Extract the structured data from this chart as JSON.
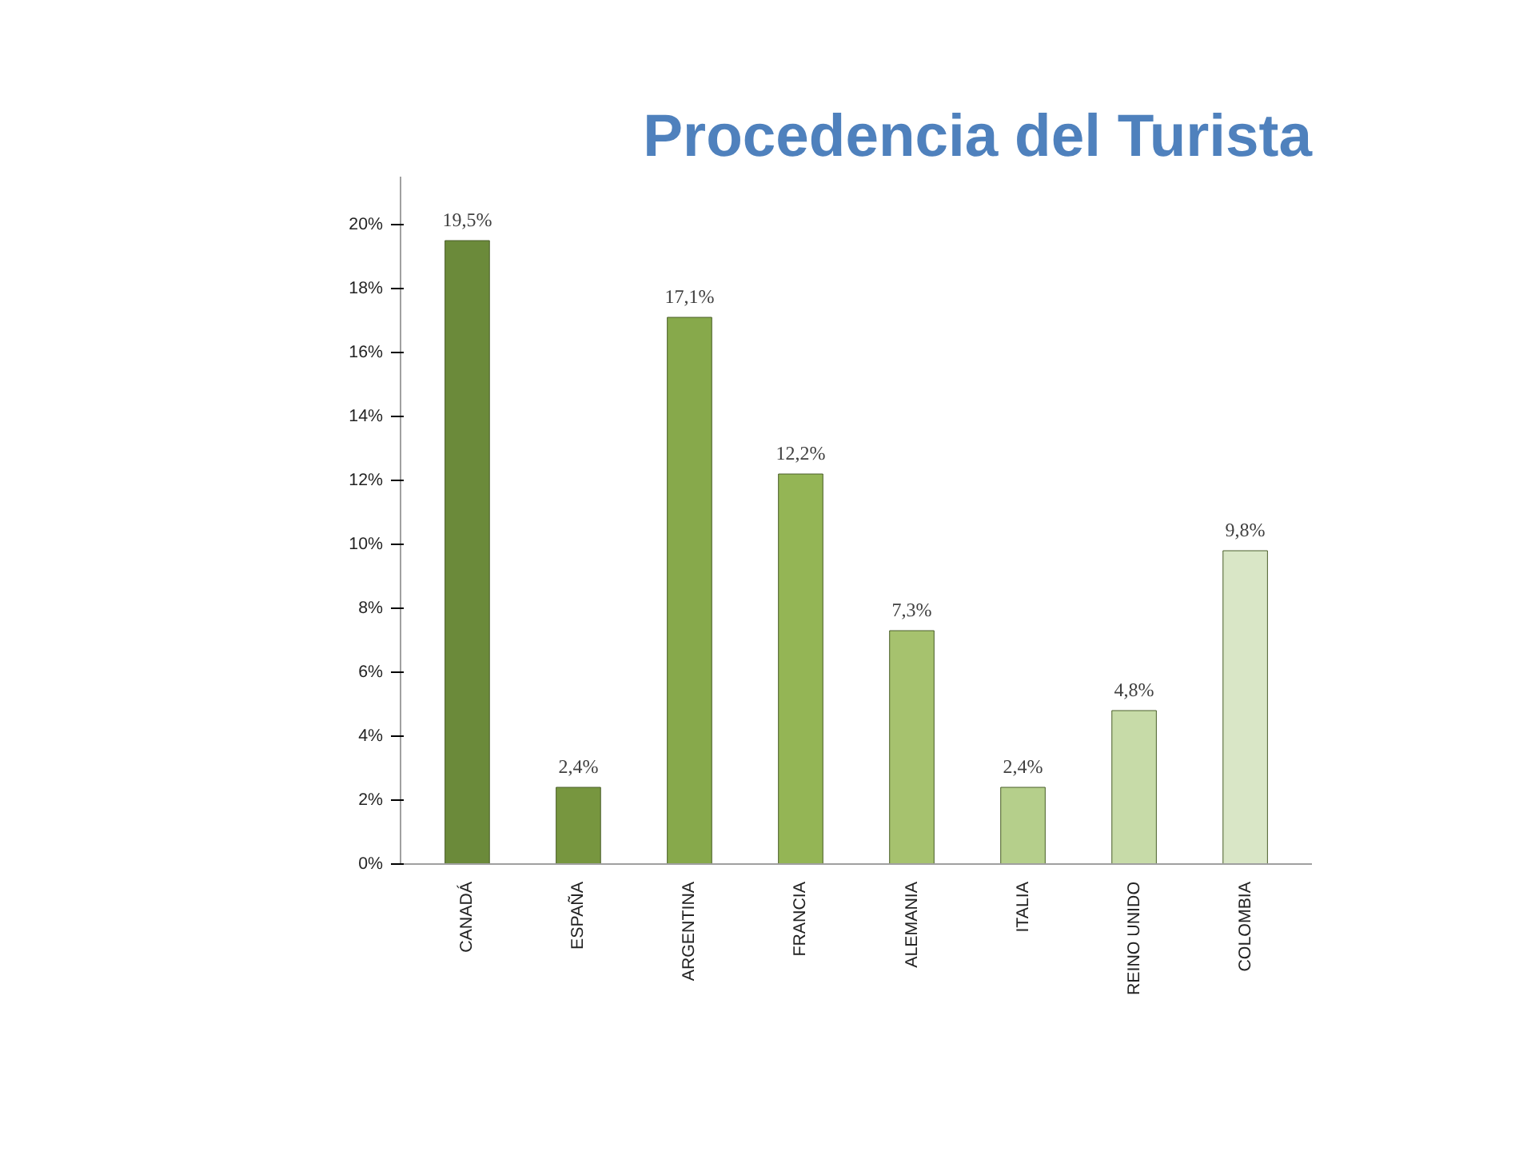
{
  "chart_data": {
    "type": "bar",
    "title": "Procedencia del Turista",
    "categories": [
      "CANADÁ",
      "ESPAÑA",
      "ARGENTINA",
      "FRANCIA",
      "ALEMANIA",
      "ITALIA",
      "REINO UNIDO",
      "COLOMBIA"
    ],
    "values": [
      19.5,
      2.4,
      17.1,
      12.2,
      7.3,
      2.4,
      4.8,
      9.8
    ],
    "value_labels": [
      "19,5%",
      "2,4%",
      "17,1%",
      "12,2%",
      "7,3%",
      "2,4%",
      "4,8%",
      "9,8%"
    ],
    "colors": [
      "#6b8a3a",
      "#77963f",
      "#87a94b",
      "#94b555",
      "#a6c26e",
      "#b5cf8b",
      "#c7dba8",
      "#d9e6c6"
    ],
    "ylim": [
      0,
      21.5
    ],
    "yticks": [
      {
        "value": 0,
        "label": "0%"
      },
      {
        "value": 2,
        "label": "2%"
      },
      {
        "value": 4,
        "label": "4%"
      },
      {
        "value": 6,
        "label": "6%"
      },
      {
        "value": 8,
        "label": "8%"
      },
      {
        "value": 10,
        "label": "10%"
      },
      {
        "value": 12,
        "label": "12%"
      },
      {
        "value": 14,
        "label": "14%"
      },
      {
        "value": 16,
        "label": "16%"
      },
      {
        "value": 18,
        "label": "18%"
      },
      {
        "value": 20,
        "label": "20%"
      }
    ],
    "grid": false
  }
}
